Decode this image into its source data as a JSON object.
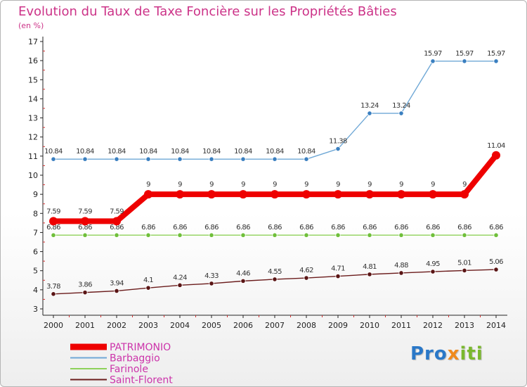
{
  "chart_data": {
    "type": "line",
    "title": "Evolution du Taux de Taxe Foncière sur les Propriétés Bâties",
    "unit_label": "(en %)",
    "xlabel": "",
    "ylabel": "",
    "categories": [
      "2000",
      "2001",
      "2002",
      "2003",
      "2004",
      "2005",
      "2006",
      "2007",
      "2008",
      "2009",
      "2010",
      "2011",
      "2012",
      "2013",
      "2014"
    ],
    "ylim": [
      3,
      17
    ],
    "yticks": [
      3,
      4,
      5,
      6,
      7,
      8,
      9,
      10,
      11,
      12,
      13,
      14,
      15,
      16,
      17
    ],
    "grid": false,
    "legend_position": "bottom-left",
    "series": [
      {
        "name": "Barbaggio",
        "color": "#6fa8d6",
        "marker": "#3a7fc0",
        "values": [
          10.84,
          10.84,
          10.84,
          10.84,
          10.84,
          10.84,
          10.84,
          10.84,
          10.84,
          11.38,
          13.24,
          13.24,
          15.97,
          15.97,
          15.97
        ],
        "labels": [
          "10.84",
          "10.84",
          "10.84",
          "10.84",
          "10.84",
          "10.84",
          "10.84",
          "10.84",
          "10.84",
          "11.38",
          "13.24",
          "13.24",
          "15.97",
          "15.97",
          "15.97"
        ]
      },
      {
        "name": "Farinole",
        "color": "#8ed15a",
        "marker": "#6fbf3a",
        "values": [
          6.86,
          6.86,
          6.86,
          6.86,
          6.86,
          6.86,
          6.86,
          6.86,
          6.86,
          6.86,
          6.86,
          6.86,
          6.86,
          6.86,
          6.86
        ],
        "labels": [
          "6.86",
          "6.86",
          "6.86",
          "6.86",
          "6.86",
          "6.86",
          "6.86",
          "6.86",
          "6.86",
          "6.86",
          "6.86",
          "6.86",
          "6.86",
          "6.86",
          "6.86"
        ]
      },
      {
        "name": "Saint-Florent",
        "color": "#6b1c1c",
        "marker": "#5a1515",
        "values": [
          3.78,
          3.86,
          3.94,
          4.1,
          4.24,
          4.33,
          4.46,
          4.55,
          4.62,
          4.71,
          4.81,
          4.88,
          4.95,
          5.01,
          5.06
        ],
        "labels": [
          "3.78",
          "3.86",
          "3.94",
          "4.1",
          "4.24",
          "4.33",
          "4.46",
          "4.55",
          "4.62",
          "4.71",
          "4.81",
          "4.88",
          "4.95",
          "5.01",
          "5.06"
        ]
      },
      {
        "name": "PATRIMONIO",
        "color": "#ee0000",
        "marker": "#ee0000",
        "highlight": true,
        "values": [
          7.59,
          7.59,
          7.59,
          9,
          9,
          9,
          9,
          9,
          9,
          9,
          9,
          9,
          9,
          9,
          11.04
        ],
        "labels": [
          "7.59",
          "7.59",
          "7.59",
          "9",
          "9",
          "9",
          "9",
          "9",
          "9",
          "9",
          "9",
          "9",
          "9",
          "9",
          "11.04"
        ]
      }
    ],
    "legend": [
      {
        "name": "PATRIMONIO",
        "color": "#ee0000",
        "text_color": "#cc33aa"
      },
      {
        "name": "Barbaggio",
        "color": "#6fa8d6",
        "text_color": "#cc33aa"
      },
      {
        "name": "Farinole",
        "color": "#8ed15a",
        "text_color": "#cc33aa"
      },
      {
        "name": "Saint-Florent",
        "color": "#6b1c1c",
        "text_color": "#cc33aa"
      }
    ],
    "title_color": "#cc3388"
  },
  "brand": {
    "prefix": "Pro",
    "x": "x",
    "suffix": "iti"
  }
}
